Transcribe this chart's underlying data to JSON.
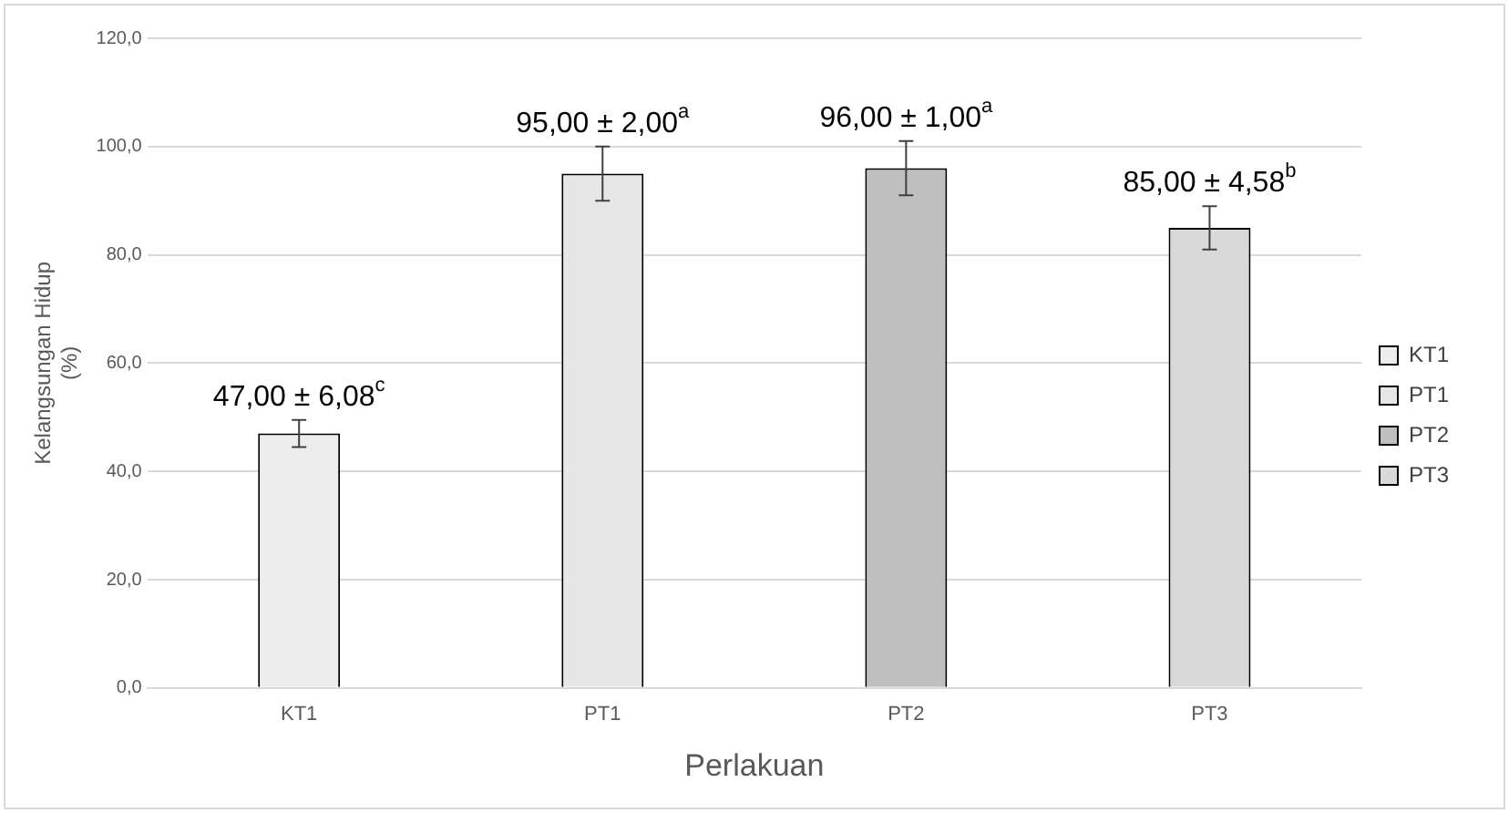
{
  "chart_data": {
    "type": "bar",
    "xlabel": "Perlakuan",
    "ylabel": "Kelangsungan Hidup (%)",
    "categories": [
      "KT1",
      "PT1",
      "PT2",
      "PT3"
    ],
    "series": [
      {
        "name": "KT1",
        "color": "#ededed",
        "values": [
          47,
          null,
          null,
          null
        ],
        "errors": [
          2.5,
          null,
          null,
          null
        ],
        "value_labels": [
          "47,00 ± 6,08$^{c}$",
          null,
          null,
          null
        ]
      },
      {
        "name": "PT1",
        "color": "#e6e6e6",
        "values": [
          null,
          95,
          null,
          null
        ],
        "errors": [
          null,
          5,
          null,
          null
        ],
        "value_labels": [
          null,
          "95,00 ± 2,00$^{a}$",
          null,
          null
        ]
      },
      {
        "name": "PT2",
        "color": "#bfbfbf",
        "values": [
          null,
          null,
          96,
          null
        ],
        "errors": [
          null,
          null,
          5,
          null
        ],
        "value_labels": [
          null,
          null,
          "96,00 ± 1,00$^{a}$",
          null
        ]
      },
      {
        "name": "PT3",
        "color": "#d9d9d9",
        "values": [
          null,
          null,
          null,
          85
        ],
        "errors": [
          null,
          null,
          null,
          4
        ],
        "value_labels": [
          null,
          null,
          null,
          "85,00 ± 4,58$^{b}$"
        ]
      }
    ],
    "ylim": [
      0,
      120
    ],
    "yticks": [
      {
        "value": 0,
        "label": "0,0"
      },
      {
        "value": 20,
        "label": "20,0"
      },
      {
        "value": 40,
        "label": "40,0"
      },
      {
        "value": 60,
        "label": "60,0"
      },
      {
        "value": 80,
        "label": "80,0"
      },
      {
        "value": 100,
        "label": "100,0"
      },
      {
        "value": 120,
        "label": "120,0"
      }
    ],
    "grid": "y",
    "legend": "right"
  }
}
